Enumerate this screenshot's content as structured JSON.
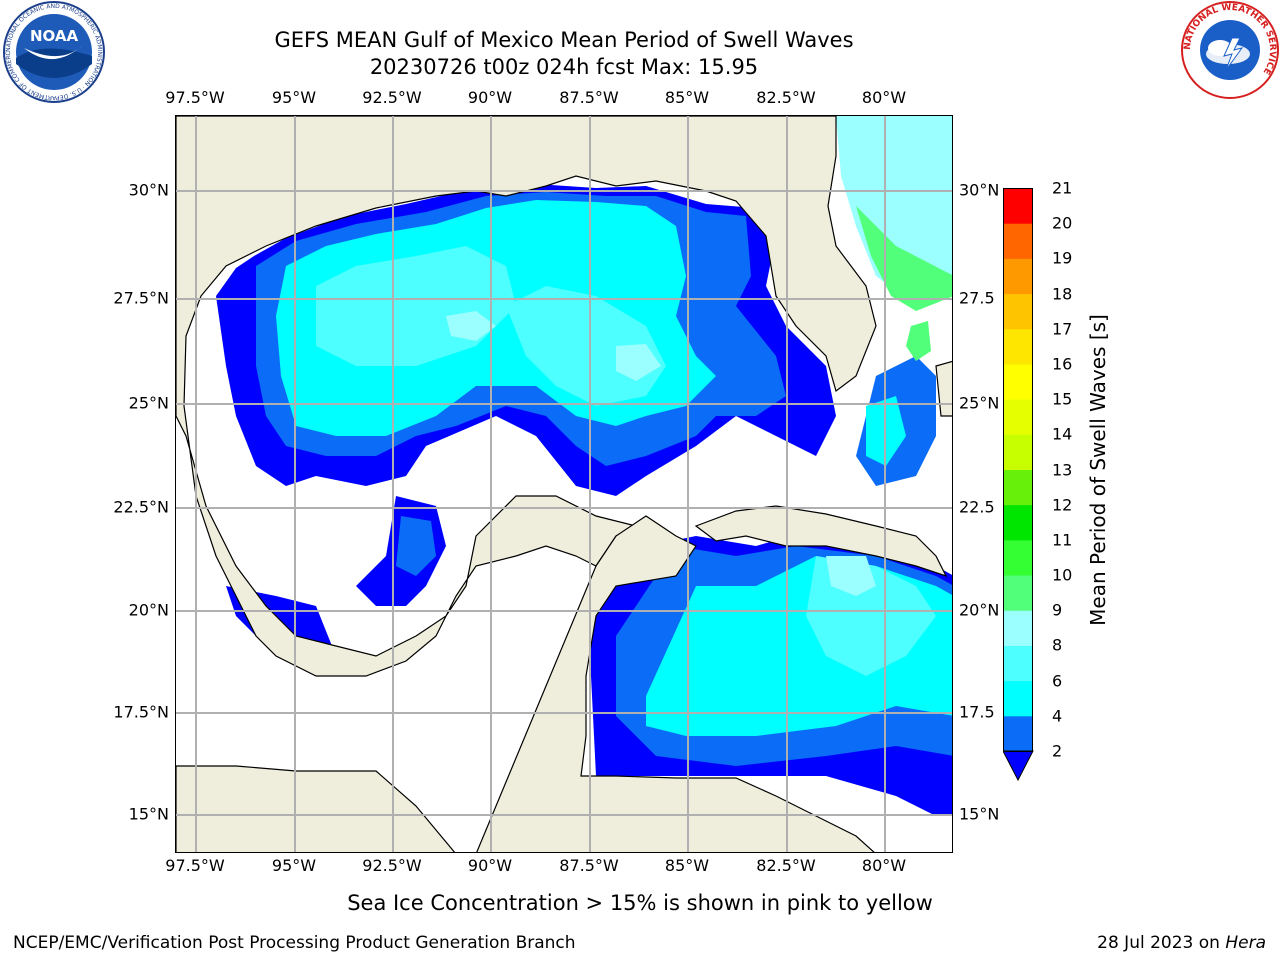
{
  "title_line1": "GEFS MEAN Gulf of Mexico Mean Period of Swell Waves",
  "title_line2": "20230726 t00z 024h fcst   Max: 15.95",
  "lon_ticks": [
    "97.5°W",
    "95°W",
    "92.5°W",
    "90°W",
    "87.5°W",
    "85°W",
    "82.5°W",
    "80°W"
  ],
  "lat_ticks": [
    "30°N",
    "27.5°N",
    "25°N",
    "22.5°N",
    "20°N",
    "17.5°N",
    "15°N"
  ],
  "lat_ticks_right": [
    "30°N",
    "27.5",
    "25°N",
    "22.5",
    "20°N",
    "17.5",
    "15°N"
  ],
  "colorbar": {
    "label": "Mean Period of Swell Waves [s]",
    "ticks": [
      "2",
      "4",
      "6",
      "8",
      "9",
      "10",
      "11",
      "12",
      "13",
      "14",
      "15",
      "16",
      "17",
      "18",
      "19",
      "20",
      "21"
    ],
    "colors": [
      "#0a6cf7",
      "#00ffff",
      "#4dffff",
      "#9cffff",
      "#52ff7a",
      "#33ff33",
      "#00e600",
      "#66f00a",
      "#c8ff00",
      "#e6ff00",
      "#ffff00",
      "#ffe600",
      "#ffc400",
      "#ff9900",
      "#ff6600",
      "#ff3300",
      "#ff0000"
    ],
    "under_color": "#0000ff"
  },
  "note": "Sea Ice Concentration > 15% is shown in pink to yellow",
  "footer": {
    "left": "NCEP/EMC/Verification Post Processing Product Generation Branch",
    "right_prefix": "28 Jul 2023 on ",
    "right_host": "Hera"
  },
  "logos": {
    "noaa_text": "NOAA",
    "noaa_ring": "NATIONAL OCEANIC AND ATMOSPHERIC ADMINISTRATION · U.S. DEPARTMENT OF COMMERCE",
    "nws_ring": "NATIONAL WEATHER SERVICE"
  },
  "colors": {
    "land": "#efeddc",
    "grid": "#b0b0b0",
    "swell_under": "#0000ff",
    "swell_2_4": "#0a6cf7",
    "swell_4_6": "#00ffff",
    "swell_6_8": "#4dffff",
    "swell_8_9": "#9cffff",
    "swell_9_10": "#52ff7a"
  }
}
